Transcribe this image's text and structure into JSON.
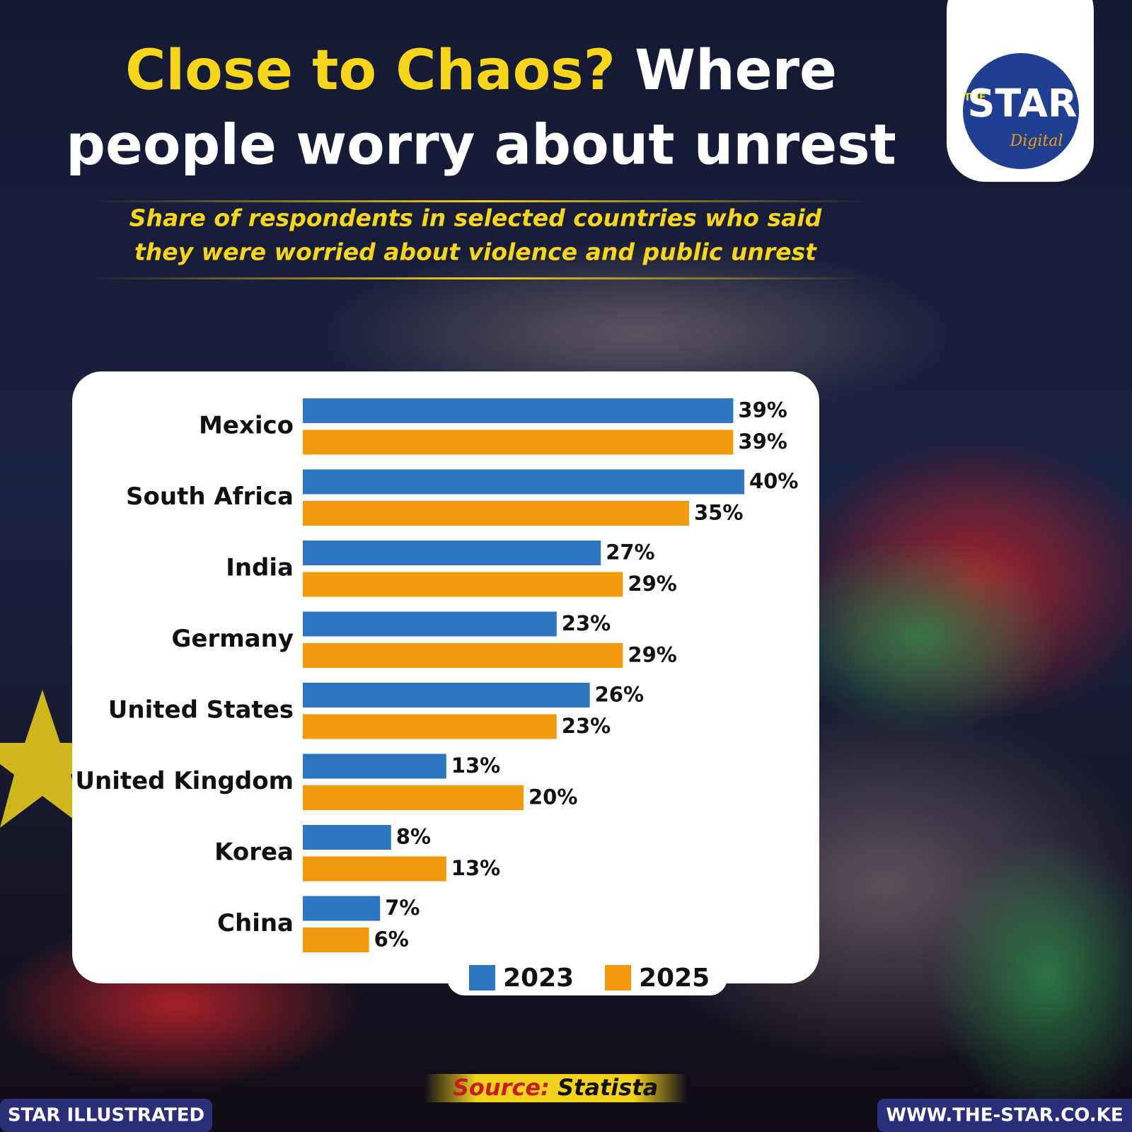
{
  "chart_data": {
    "type": "bar",
    "orientation": "horizontal",
    "title": [
      "Close to Chaos?",
      "Where",
      "people worry about unrest"
    ],
    "subtitle": [
      "Share of respondents in selected countries who said",
      "they were worried about violence and public unrest"
    ],
    "categories": [
      "Mexico",
      "South Africa",
      "India",
      "Germany",
      "United States",
      "United Kingdom",
      "Korea",
      "China"
    ],
    "series": [
      {
        "name": "2023",
        "color": "#2f76c2",
        "values": [
          39,
          40,
          27,
          23,
          26,
          13,
          8,
          7
        ],
        "value_labels": [
          "39%",
          "40%",
          "27%",
          "23%",
          "26%",
          "13%",
          "8%",
          "7%"
        ]
      },
      {
        "name": "2025",
        "color": "#f39a0c",
        "values": [
          39,
          35,
          29,
          29,
          23,
          20,
          13,
          6
        ],
        "value_labels": [
          "39%",
          "35%",
          "29%",
          "29%",
          "23%",
          "20%",
          "13%",
          "6%"
        ]
      }
    ],
    "source": [
      "Source:",
      "Statista"
    ]
  },
  "logo": {
    "prefix": "THE",
    "name": "STAR",
    "tagline": "Digital"
  },
  "footer": {
    "left": "STAR ILLUSTRATED",
    "right": "WWW.THE-STAR.CO.KE"
  }
}
